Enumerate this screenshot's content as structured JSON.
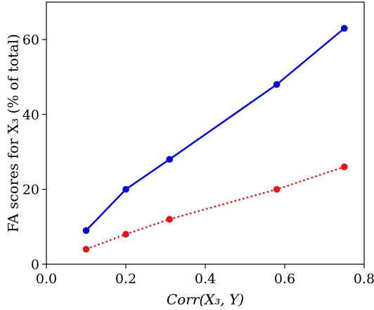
{
  "chart_data": {
    "type": "line",
    "title": "",
    "xlabel": "Corr(X₃, Y)",
    "ylabel": "FA scores for X₃ (% of total)",
    "xlim": [
      0.0,
      0.8
    ],
    "ylim": [
      0,
      70
    ],
    "xticks": [
      0.0,
      0.2,
      0.4,
      0.6,
      0.8
    ],
    "xtick_labels": [
      "0.0",
      "0.2",
      "0.4",
      "0.6",
      "0.8"
    ],
    "yticks": [
      0,
      20,
      40,
      60
    ],
    "ytick_labels": [
      "0",
      "20",
      "40",
      "60"
    ],
    "grid": false,
    "legend": "none",
    "series": [
      {
        "color": "#0000dd",
        "line_style": "solid",
        "marker": "circle",
        "x": [
          0.1,
          0.2,
          0.31,
          0.58,
          0.75
        ],
        "y": [
          9,
          20,
          28,
          48,
          63
        ]
      },
      {
        "color": "#ee1111",
        "line_style": "dotted",
        "marker": "circle",
        "x": [
          0.1,
          0.2,
          0.31,
          0.58,
          0.75
        ],
        "y": [
          4,
          8,
          12,
          20,
          26
        ]
      }
    ]
  }
}
